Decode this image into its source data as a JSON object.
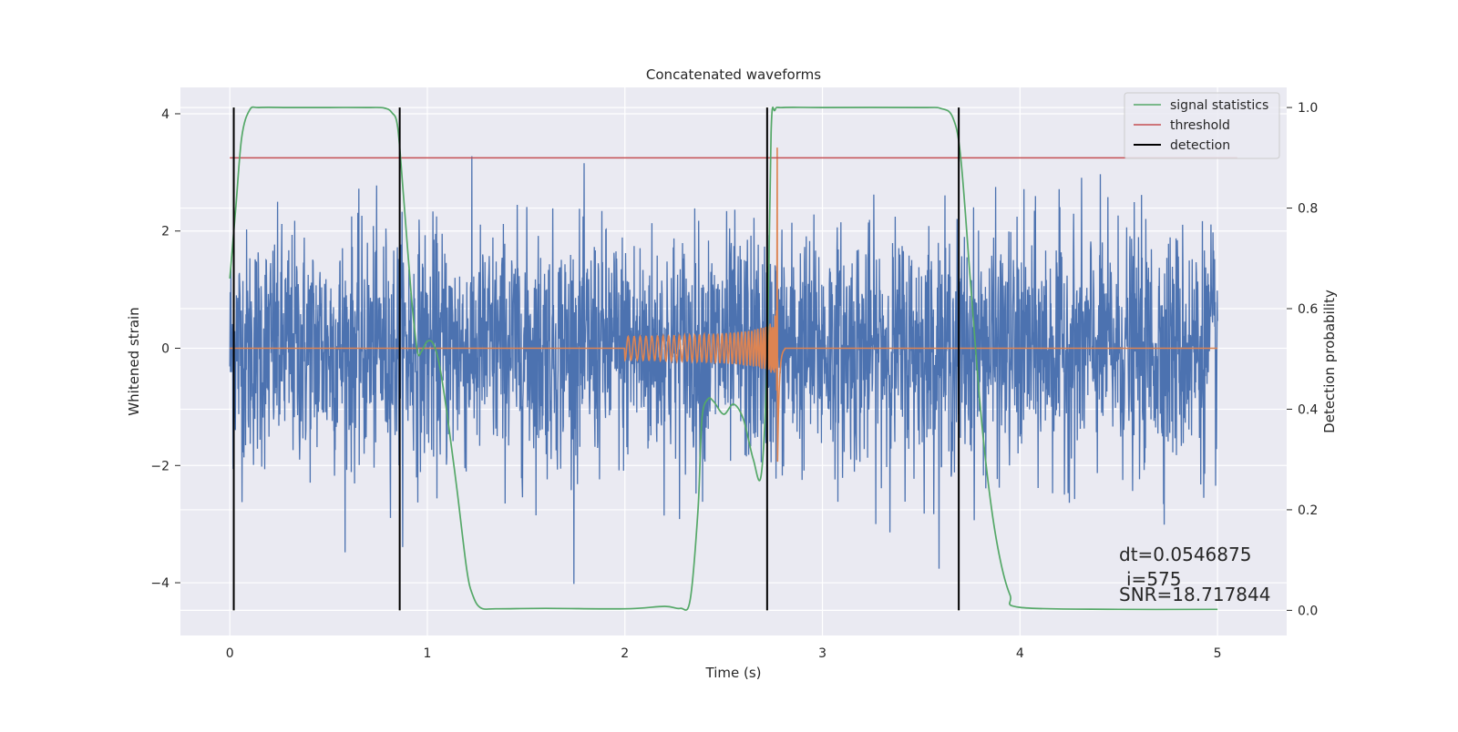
{
  "chart_data": {
    "type": "line",
    "title": "Concatenated waveforms",
    "xlabel": "Time (s)",
    "ylabel": "Whitened strain",
    "y2label": "Detection probability",
    "xlim": [
      -0.25,
      5.35
    ],
    "ylim": [
      -4.9,
      4.45
    ],
    "y2lim": [
      -0.05,
      1.04
    ],
    "xticks": [
      0,
      1,
      2,
      3,
      4,
      5
    ],
    "yticks": [
      -4,
      -2,
      0,
      2,
      4
    ],
    "y2ticks": [
      0.0,
      0.2,
      0.4,
      0.6,
      0.8,
      1.0
    ],
    "xtick_labels": [
      "0",
      "1",
      "2",
      "3",
      "4",
      "5"
    ],
    "ytick_labels": [
      "−4",
      "−2",
      "0",
      "2",
      "4"
    ],
    "y2tick_labels": [
      "0.0",
      "0.2",
      "0.4",
      "0.6",
      "0.8",
      "1.0"
    ],
    "grid": true,
    "background": "#eaeaf2",
    "colors": {
      "noise": "#4c72b0",
      "waveform": "#dd8452",
      "signal_statistics": "#55a868",
      "threshold": "#c44e52",
      "detection": "#000000"
    },
    "noise_strain": {
      "x_range": [
        0,
        5
      ],
      "typical_amplitude": 1.0,
      "peak_range": [
        -4.3,
        3.4
      ]
    },
    "waveform": {
      "start": 2.0,
      "merger": 2.77,
      "end_amplitude": 3.8
    },
    "signal_statistics": {
      "x": [
        0.0,
        0.03,
        0.06,
        0.1,
        0.15,
        0.3,
        0.5,
        0.7,
        0.78,
        0.82,
        0.85,
        0.88,
        0.92,
        0.95,
        0.97,
        1.0,
        1.03,
        1.06,
        1.1,
        1.15,
        1.2,
        1.23,
        1.27,
        1.35,
        1.6,
        2.0,
        2.2,
        2.28,
        2.33,
        2.37,
        2.39,
        2.42,
        2.45,
        2.5,
        2.55,
        2.6,
        2.65,
        2.69,
        2.72,
        2.74,
        2.76,
        2.8,
        3.0,
        3.5,
        3.6,
        3.66,
        3.7,
        3.75,
        3.8,
        3.85,
        3.9,
        3.95,
        4.0,
        4.5,
        5.0
      ],
      "y": [
        0.66,
        0.8,
        0.94,
        0.995,
        1.0,
        1.0,
        1.0,
        1.0,
        0.999,
        0.99,
        0.96,
        0.82,
        0.62,
        0.515,
        0.515,
        0.535,
        0.53,
        0.49,
        0.39,
        0.24,
        0.08,
        0.03,
        0.005,
        0.003,
        0.004,
        0.003,
        0.008,
        0.004,
        0.02,
        0.2,
        0.38,
        0.42,
        0.415,
        0.39,
        0.41,
        0.38,
        0.3,
        0.27,
        0.5,
        0.95,
        0.995,
        1.0,
        1.0,
        1.0,
        0.998,
        0.98,
        0.9,
        0.65,
        0.4,
        0.22,
        0.1,
        0.03,
        0.006,
        0.002,
        0.002
      ]
    },
    "threshold": {
      "value": 0.9,
      "x_range": [
        0,
        5.1
      ]
    },
    "detections": [
      0.02,
      0.86,
      2.72,
      3.69
    ],
    "legend": {
      "position": "upper right",
      "items": [
        "signal statistics",
        "threshold",
        "detection"
      ]
    },
    "annotations": {
      "dt": "dt=0.0546875",
      "i": "i=575",
      "snr": "SNR=18.717844"
    }
  }
}
